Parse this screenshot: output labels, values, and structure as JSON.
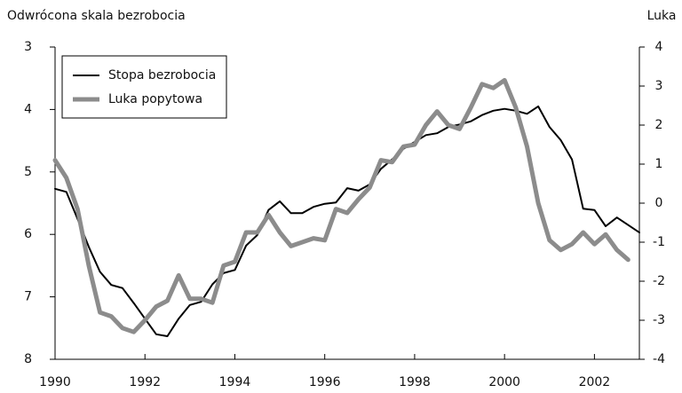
{
  "chart_data": {
    "type": "line",
    "y_label": "Odwrócona skala bezrobocia",
    "y2_label": "Luka",
    "x": [
      1990,
      1990.25,
      1990.5,
      1990.75,
      1991,
      1991.25,
      1991.5,
      1991.75,
      1992,
      1992.25,
      1992.5,
      1992.75,
      1993,
      1993.25,
      1993.5,
      1993.75,
      1994,
      1994.25,
      1994.5,
      1994.75,
      1995,
      1995.25,
      1995.5,
      1995.75,
      1996,
      1996.25,
      1996.5,
      1996.75,
      1997,
      1997.25,
      1997.5,
      1997.75,
      1998,
      1998.25,
      1998.5,
      1998.75,
      1999,
      1999.25,
      1999.5,
      1999.75,
      2000,
      2000.25,
      2000.5,
      2000.75,
      2001,
      2001.25,
      2001.5,
      2001.75,
      2002,
      2002.25,
      2002.5,
      2002.75,
      2003
    ],
    "xlim": [
      1990,
      2003
    ],
    "xticks": [
      1990,
      1992,
      1994,
      1996,
      1998,
      2000,
      2002
    ],
    "ylim": [
      3,
      8
    ],
    "y_inverted": true,
    "yticks": [
      3,
      4,
      5,
      6,
      7,
      8
    ],
    "y2lim": [
      -4,
      4
    ],
    "y2ticks": [
      -4,
      -3,
      -2,
      -1,
      0,
      1,
      2,
      3,
      4
    ],
    "series": [
      {
        "name": "Stopa bezrobocia",
        "color": "#000000",
        "axis": "y",
        "values": [
          5.27,
          5.32,
          5.75,
          6.2,
          6.6,
          6.81,
          6.86,
          7.1,
          7.35,
          7.6,
          7.63,
          7.35,
          7.13,
          7.08,
          6.8,
          6.62,
          6.57,
          6.18,
          6.01,
          5.61,
          5.47,
          5.66,
          5.66,
          5.56,
          5.51,
          5.49,
          5.26,
          5.3,
          5.2,
          4.95,
          4.8,
          4.63,
          4.52,
          4.41,
          4.38,
          4.28,
          4.24,
          4.19,
          4.09,
          4.02,
          3.99,
          4.02,
          4.07,
          3.95,
          4.28,
          4.49,
          4.8,
          5.59,
          5.61,
          5.87,
          5.73,
          5.85,
          5.97
        ]
      },
      {
        "name": "Luka popytowa",
        "color": "#8c8c8c",
        "axis": "y2",
        "values": [
          1.1,
          0.65,
          -0.15,
          -1.6,
          -2.8,
          -2.9,
          -3.2,
          -3.3,
          -3.0,
          -2.65,
          -2.5,
          -1.85,
          -2.45,
          -2.45,
          -2.55,
          -1.6,
          -1.5,
          -0.75,
          -0.75,
          -0.3,
          -0.75,
          -1.1,
          -1.0,
          -0.9,
          -0.95,
          -0.15,
          -0.25,
          0.1,
          0.4,
          1.1,
          1.05,
          1.45,
          1.5,
          2.0,
          2.35,
          2.0,
          1.9,
          2.45,
          3.05,
          2.95,
          3.15,
          2.45,
          1.45,
          0.0,
          -0.95,
          -1.2,
          -1.05,
          -0.75,
          -1.05,
          -0.8,
          -1.2,
          -1.45,
          null
        ]
      }
    ],
    "legend": "upper left"
  }
}
